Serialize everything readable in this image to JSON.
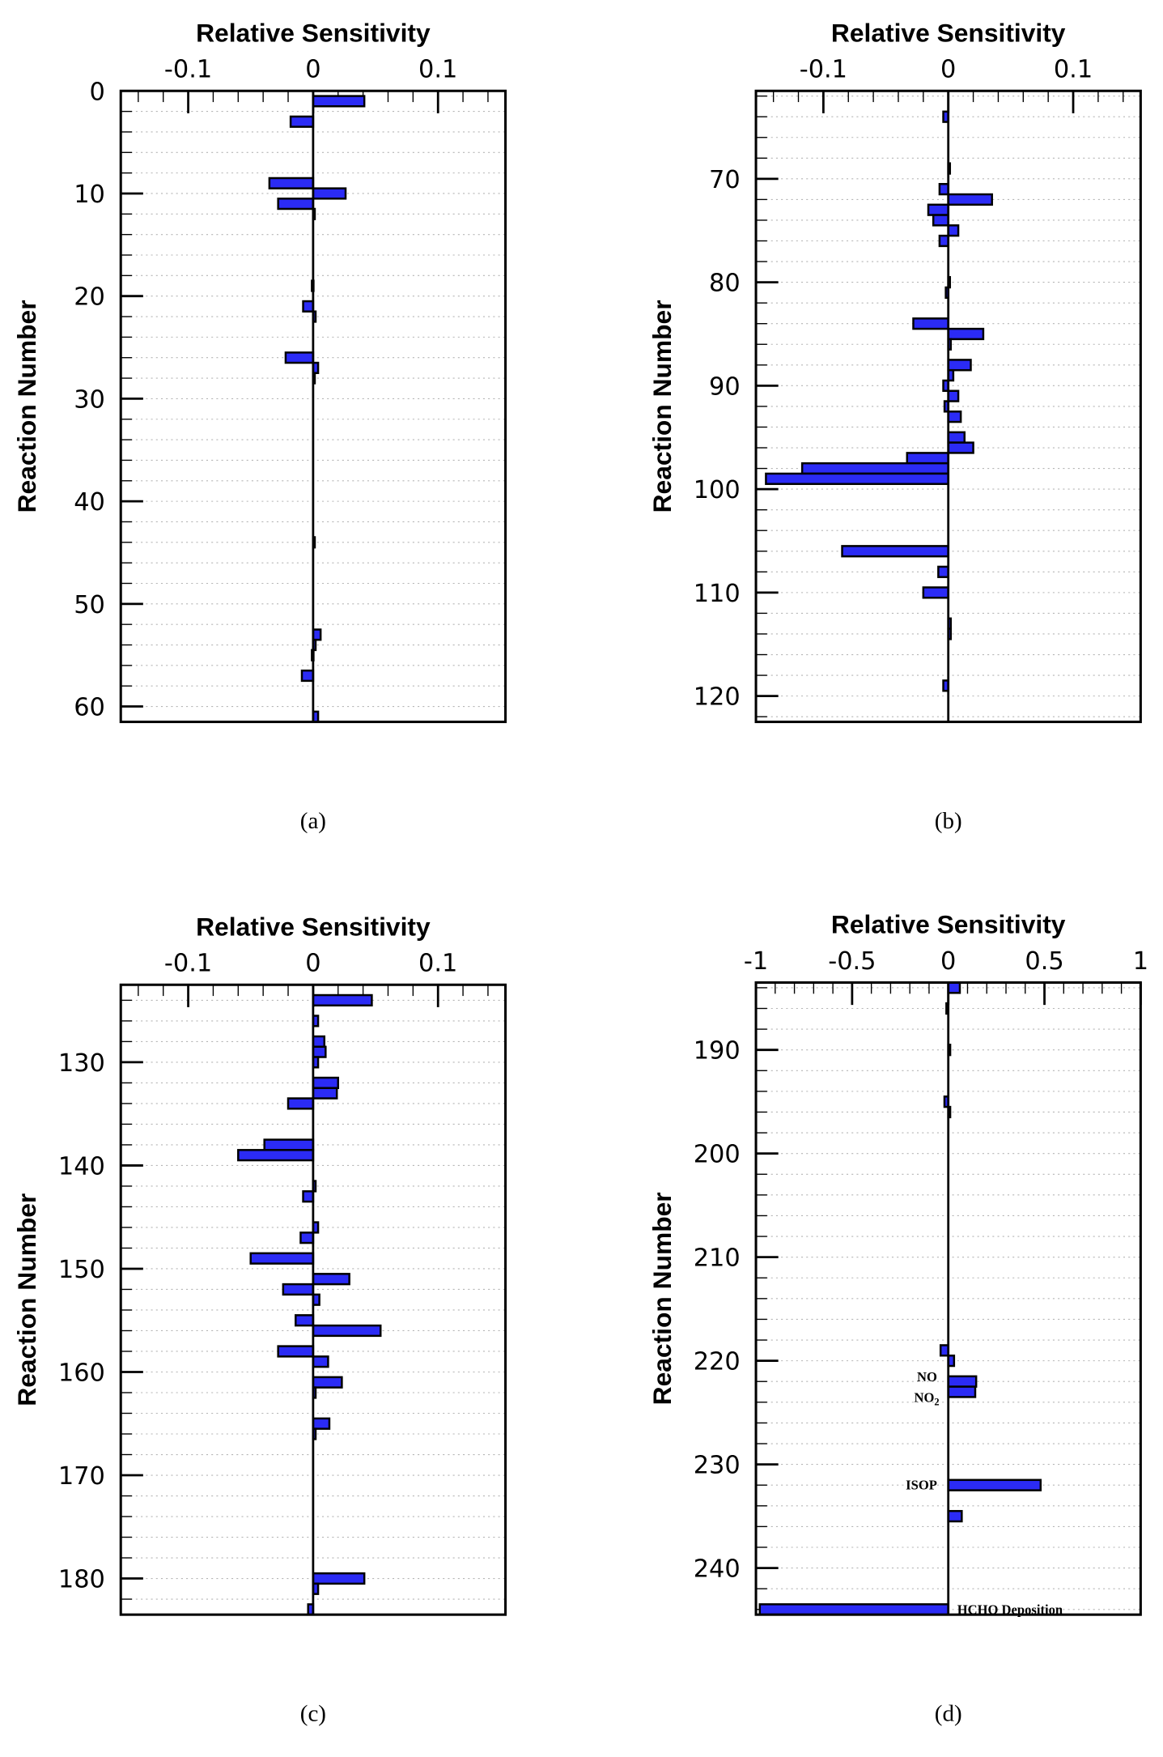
{
  "chart_data": [
    {
      "type": "bar",
      "orientation": "horizontal",
      "caption": "(a)",
      "title": "Relative Sensitivity",
      "xlabel": "Relative Sensitivity",
      "ylabel": "Reaction Number",
      "xlim": [
        -0.154,
        0.154
      ],
      "ylim": [
        0,
        61.5
      ],
      "xticks": [
        -0.1,
        0,
        0.1
      ],
      "xtick_labels": [
        "-0.1",
        "0",
        "0.1"
      ],
      "yticks": [
        0,
        10,
        20,
        30,
        40,
        50,
        60
      ],
      "ytick_labels": [
        "0",
        "10",
        "20",
        "30",
        "40",
        "50",
        "60"
      ],
      "grid": "horizontal-dotted",
      "bar_color": "#2b2bf5",
      "bars": [
        [
          1,
          0.041
        ],
        [
          3,
          -0.018
        ],
        [
          9,
          -0.035
        ],
        [
          10,
          0.026
        ],
        [
          11,
          -0.028
        ],
        [
          12,
          0.001
        ],
        [
          19,
          -0.001
        ],
        [
          21,
          -0.008
        ],
        [
          22,
          0.002
        ],
        [
          26,
          -0.022
        ],
        [
          27,
          0.004
        ],
        [
          28,
          0.001
        ],
        [
          44,
          0.001
        ],
        [
          53,
          0.006
        ],
        [
          54,
          0.002
        ],
        [
          55,
          -0.001
        ],
        [
          57,
          -0.009
        ],
        [
          61,
          0.004
        ]
      ]
    },
    {
      "type": "bar",
      "orientation": "horizontal",
      "caption": "(b)",
      "title": "Relative Sensitivity",
      "xlabel": "Relative Sensitivity",
      "ylabel": "Reaction Number",
      "xlim": [
        -0.154,
        0.154
      ],
      "ylim": [
        61.5,
        122.5
      ],
      "xticks": [
        -0.1,
        0,
        0.1
      ],
      "xtick_labels": [
        "-0.1",
        "0",
        "0.1"
      ],
      "yticks": [
        70,
        80,
        90,
        100,
        110,
        120
      ],
      "ytick_labels": [
        "70",
        "80",
        "90",
        "100",
        "110",
        "120"
      ],
      "grid": "horizontal-dotted",
      "bar_color": "#2b2bf5",
      "bars": [
        [
          64,
          -0.004
        ],
        [
          69,
          0.001
        ],
        [
          71,
          -0.007
        ],
        [
          72,
          0.035
        ],
        [
          73,
          -0.016
        ],
        [
          74,
          -0.012
        ],
        [
          75,
          0.008
        ],
        [
          76,
          -0.007
        ],
        [
          80,
          0.001
        ],
        [
          81,
          -0.002
        ],
        [
          84,
          -0.028
        ],
        [
          85,
          0.028
        ],
        [
          86,
          0.002
        ],
        [
          88,
          0.018
        ],
        [
          89,
          0.004
        ],
        [
          90,
          -0.004
        ],
        [
          91,
          0.008
        ],
        [
          92,
          -0.003
        ],
        [
          93,
          0.01
        ],
        [
          95,
          0.013
        ],
        [
          96,
          0.02
        ],
        [
          97,
          -0.033
        ],
        [
          98,
          -0.117
        ],
        [
          99,
          -0.146
        ],
        [
          106,
          -0.085
        ],
        [
          108,
          -0.008
        ],
        [
          110,
          -0.02
        ],
        [
          113,
          0.002
        ],
        [
          114,
          0.002
        ],
        [
          119,
          -0.004
        ]
      ]
    },
    {
      "type": "bar",
      "orientation": "horizontal",
      "caption": "(c)",
      "title": "Relative Sensitivity",
      "xlabel": "Relative Sensitivity",
      "ylabel": "Reaction Number",
      "xlim": [
        -0.154,
        0.154
      ],
      "ylim": [
        122.5,
        183.5
      ],
      "xticks": [
        -0.1,
        0,
        0.1
      ],
      "xtick_labels": [
        "-0.1",
        "0",
        "0.1"
      ],
      "yticks": [
        130,
        140,
        150,
        160,
        170,
        180
      ],
      "ytick_labels": [
        "130",
        "140",
        "150",
        "160",
        "170",
        "180"
      ],
      "grid": "horizontal-dotted",
      "bar_color": "#2b2bf5",
      "bars": [
        [
          124,
          0.047
        ],
        [
          126,
          0.004
        ],
        [
          128,
          0.009
        ],
        [
          129,
          0.01
        ],
        [
          130,
          0.004
        ],
        [
          132,
          0.02
        ],
        [
          133,
          0.019
        ],
        [
          134,
          -0.02
        ],
        [
          138,
          -0.039
        ],
        [
          139,
          -0.06
        ],
        [
          142,
          0.002
        ],
        [
          143,
          -0.008
        ],
        [
          146,
          0.004
        ],
        [
          147,
          -0.01
        ],
        [
          149,
          -0.05
        ],
        [
          151,
          0.029
        ],
        [
          152,
          -0.024
        ],
        [
          153,
          0.005
        ],
        [
          155,
          -0.014
        ],
        [
          156,
          0.054
        ],
        [
          158,
          -0.028
        ],
        [
          159,
          0.012
        ],
        [
          161,
          0.023
        ],
        [
          162,
          0.002
        ],
        [
          165,
          0.013
        ],
        [
          166,
          0.002
        ],
        [
          180,
          0.041
        ],
        [
          181,
          0.004
        ],
        [
          183,
          -0.004
        ]
      ]
    },
    {
      "type": "bar",
      "orientation": "horizontal",
      "caption": "(d)",
      "title": "Relative Sensitivity",
      "xlabel": "Relative Sensitivity",
      "ylabel": "Reaction Number",
      "xlim": [
        -1,
        1
      ],
      "ylim": [
        183.5,
        244.5
      ],
      "xticks": [
        -1,
        -0.5,
        0,
        0.5,
        1
      ],
      "xtick_labels": [
        "-1",
        "-0.5",
        "0",
        "0.5",
        "1"
      ],
      "yticks": [
        190,
        200,
        210,
        220,
        230,
        240
      ],
      "ytick_labels": [
        "190",
        "200",
        "210",
        "220",
        "230",
        "240"
      ],
      "grid": "horizontal-dotted",
      "bar_color": "#2b2bf5",
      "bars": [
        [
          184,
          0.06
        ],
        [
          186,
          -0.01
        ],
        [
          190,
          0.01
        ],
        [
          195,
          -0.02
        ],
        [
          196,
          0.01
        ],
        [
          219,
          -0.04
        ],
        [
          220,
          0.03
        ],
        [
          222,
          0.145
        ],
        [
          223,
          0.14
        ],
        [
          232,
          0.48
        ],
        [
          235,
          0.07
        ],
        [
          244,
          -0.98
        ]
      ],
      "annotations": [
        {
          "reaction": 222,
          "text": "NO",
          "side": "left"
        },
        {
          "reaction": 223,
          "text": "NO",
          "sub": "2",
          "side": "left"
        },
        {
          "reaction": 232,
          "text": "ISOP",
          "side": "left"
        },
        {
          "reaction": 244,
          "text": "HCHO Deposition",
          "side": "right"
        }
      ]
    }
  ]
}
